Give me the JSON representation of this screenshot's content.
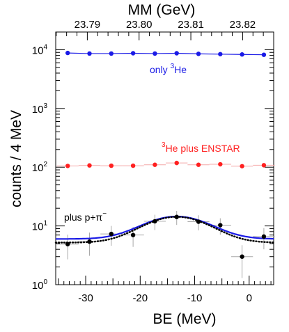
{
  "chart_data": {
    "type": "scatter",
    "xlabel": "BE (MeV)",
    "ylabel": "counts / 4 MeV",
    "top_xlabel": "MM (GeV)",
    "xlim": [
      -35.5,
      4.5
    ],
    "ylim": [
      1,
      20000
    ],
    "y_scale": "log",
    "grid": false,
    "x_ticks": [
      -30,
      -20,
      -10,
      0
    ],
    "x_tick_labels": [
      "-30",
      "-20",
      "-10",
      "0"
    ],
    "y_ticks": [
      1,
      10,
      100,
      1000,
      10000
    ],
    "y_tick_labels": [
      {
        "base": "10",
        "exp": "0"
      },
      {
        "base": "10",
        "exp": "1"
      },
      {
        "base": "10",
        "exp": "2"
      },
      {
        "base": "10",
        "exp": "3"
      },
      {
        "base": "10",
        "exp": "4"
      }
    ],
    "top_ticks": [
      -29.7,
      -20.2,
      -10.7,
      -1.2
    ],
    "top_tick_labels": [
      "23.79",
      "23.80",
      "23.81",
      "23.82"
    ],
    "annotations": [
      {
        "base": "only ",
        "sup": "3",
        "rest": "He",
        "color": "#1a1ae6"
      },
      {
        "base": "",
        "sup": "3",
        "rest": "He plus ENSTAR",
        "color": "#ff2020"
      },
      {
        "base": "plus p+",
        "rest2": "π",
        "sup2": "−",
        "color": "#000000"
      }
    ],
    "series": [
      {
        "color": "#1a1ae6",
        "x": [
          -33.3,
          -29.3,
          -25.3,
          -21.3,
          -17.3,
          -13.3,
          -9.3,
          -5.3,
          -1.3,
          2.7
        ],
        "y": [
          8800,
          8600,
          8600,
          8700,
          8600,
          8700,
          8500,
          8400,
          8300,
          8200
        ]
      },
      {
        "color": "#ff2020",
        "x": [
          -33.3,
          -29.3,
          -25.3,
          -21.3,
          -17.3,
          -13.3,
          -9.3,
          -5.3,
          -1.3,
          2.7
        ],
        "y": [
          105,
          107,
          106,
          106,
          110,
          118,
          110,
          112,
          104,
          108
        ],
        "yerr": [
          6,
          6,
          6,
          6,
          6,
          7,
          6,
          6,
          6,
          6
        ]
      },
      {
        "color": "#000000",
        "x": [
          -33.3,
          -29.3,
          -25.3,
          -21.3,
          -17.3,
          -13.3,
          -9.3,
          -5.3,
          -1.3,
          2.7
        ],
        "y": [
          4.9,
          5.4,
          7.3,
          7.0,
          12.0,
          14.2,
          11.8,
          10.3,
          3.0,
          6.6
        ],
        "yerr": [
          2.2,
          2.3,
          2.7,
          2.6,
          3.5,
          3.8,
          3.4,
          3.2,
          1.7,
          2.6
        ]
      }
    ],
    "fits": [
      {
        "color": "#1a1ae6",
        "baseline": 6.0,
        "amplitude": 8.5,
        "center": -13.3,
        "sigma": 5.5
      },
      {
        "color": "#000000",
        "baseline": 5.2,
        "amplitude": 9.1,
        "center": -13.3,
        "sigma": 5.5
      }
    ]
  }
}
